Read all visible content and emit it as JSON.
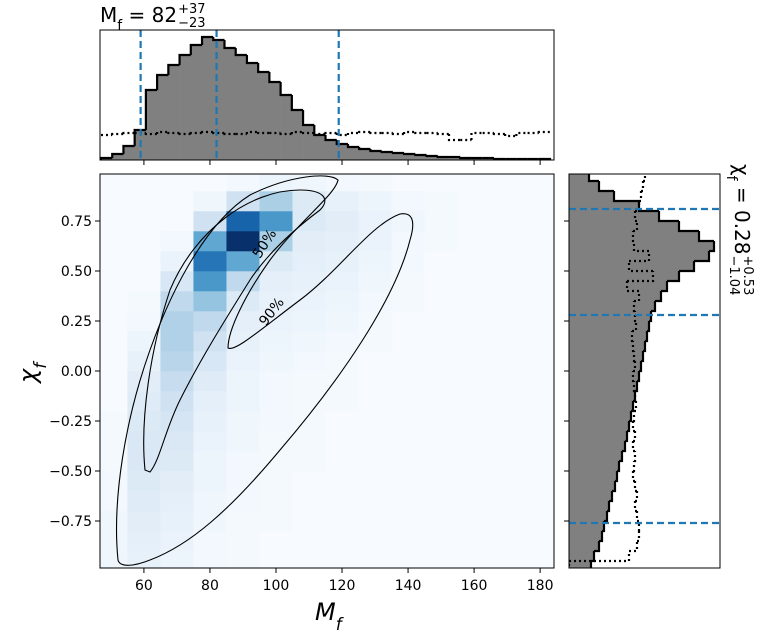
{
  "chart_data": [
    {
      "type": "heatmap",
      "x_label": {
        "symbol": "M",
        "sub": "f"
      },
      "y_label": {
        "symbol": "χ",
        "sub": "f"
      },
      "xlim": [
        46.7,
        184.2
      ],
      "ylim": [
        -0.985,
        0.985
      ],
      "xticks": [
        60,
        80,
        100,
        120,
        140,
        160,
        180
      ],
      "yticks": [
        0.75,
        {
          "value": 0.5,
          "label": "0.50"
        },
        0.25,
        {
          "value": 0,
          "label": "0.00"
        },
        {
          "value": -0.25,
          "label": "−0.25"
        },
        {
          "value": -0.5,
          "label": "−0.50"
        },
        {
          "value": -0.75,
          "label": "−0.75"
        }
      ],
      "x_bins": [
        45,
        55,
        65,
        75,
        85,
        95,
        105,
        115,
        125,
        135,
        145,
        155,
        165,
        175,
        185
      ],
      "y_bins": [
        -1,
        -0.9,
        -0.8,
        -0.7,
        -0.6,
        -0.5,
        -0.4,
        -0.3,
        -0.2,
        -0.1,
        0,
        0.1,
        0.2,
        0.3,
        0.4,
        0.5,
        0.6,
        0.7,
        0.8,
        0.9,
        1
      ],
      "z": [
        [
          3,
          6,
          4,
          2,
          1,
          0,
          0,
          0,
          0,
          0,
          0,
          0,
          0,
          0
        ],
        [
          3,
          7,
          5,
          2,
          1,
          0,
          0,
          0,
          0,
          0,
          0,
          0,
          0,
          0
        ],
        [
          3,
          8,
          6,
          3,
          1,
          1,
          0,
          0,
          0,
          0,
          0,
          0,
          0,
          0
        ],
        [
          2,
          9,
          7,
          3,
          2,
          1,
          0,
          0,
          0,
          0,
          0,
          0,
          0,
          0
        ],
        [
          2,
          10,
          8,
          4,
          2,
          1,
          0,
          0,
          0,
          0,
          0,
          0,
          0,
          0
        ],
        [
          1,
          11,
          10,
          4,
          2,
          1,
          1,
          0,
          0,
          0,
          0,
          0,
          0,
          0
        ],
        [
          1,
          11,
          11,
          5,
          3,
          1,
          1,
          0,
          0,
          0,
          0,
          0,
          0,
          0
        ],
        [
          1,
          10,
          13,
          6,
          3,
          2,
          1,
          0,
          0,
          0,
          0,
          0,
          0,
          0
        ],
        [
          0,
          9,
          15,
          7,
          4,
          2,
          1,
          1,
          0,
          0,
          0,
          0,
          0,
          0
        ],
        [
          0,
          8,
          18,
          9,
          4,
          2,
          1,
          1,
          0,
          0,
          0,
          0,
          0,
          0
        ],
        [
          0,
          6,
          22,
          12,
          5,
          3,
          2,
          1,
          0,
          0,
          0,
          0,
          0,
          0
        ],
        [
          0,
          4,
          24,
          15,
          6,
          4,
          3,
          2,
          1,
          0,
          0,
          0,
          0,
          0
        ],
        [
          0,
          2,
          24,
          20,
          7,
          5,
          4,
          3,
          1,
          0,
          0,
          0,
          0,
          0
        ],
        [
          0,
          1,
          20,
          30,
          10,
          6,
          5,
          4,
          2,
          1,
          0,
          0,
          0,
          0
        ],
        [
          0,
          0,
          12,
          45,
          20,
          7,
          6,
          5,
          3,
          1,
          0,
          0,
          0,
          0
        ],
        [
          0,
          0,
          5,
          55,
          40,
          10,
          7,
          6,
          4,
          2,
          0,
          0,
          0,
          0
        ],
        [
          0,
          0,
          2,
          40,
          75,
          25,
          8,
          7,
          5,
          2,
          1,
          0,
          0,
          0
        ],
        [
          0,
          0,
          0,
          15,
          60,
          45,
          10,
          8,
          5,
          3,
          1,
          0,
          0,
          0
        ],
        [
          0,
          0,
          0,
          3,
          15,
          25,
          10,
          6,
          4,
          2,
          1,
          0,
          0,
          0
        ],
        [
          0,
          0,
          0,
          0,
          2,
          4,
          3,
          2,
          1,
          0,
          0,
          0,
          0,
          0
        ]
      ],
      "contour_labels": [
        "50%",
        "90%"
      ]
    },
    {
      "type": "histogram",
      "orientation": "vertical",
      "title": {
        "symbol": "M",
        "sub": "f",
        "eq": " = 82",
        "plus": "+37",
        "minus": "−23"
      },
      "xlim": [
        46.7,
        184.2
      ],
      "ylim": [
        0,
        130
      ],
      "xticks": [
        60,
        80,
        100,
        120,
        140,
        160,
        180
      ],
      "quantiles": [
        59,
        82,
        119
      ],
      "quantile_color": "#1f77b4",
      "bins": [
        47,
        50.4,
        53.8,
        57.2,
        60.6,
        64,
        67.4,
        70.8,
        74.2,
        77.6,
        81,
        84.4,
        87.8,
        91.2,
        94.6,
        98,
        101.4,
        104.8,
        108.2,
        111.6,
        115,
        118.4,
        121.8,
        125.2,
        128.6,
        132,
        135.4,
        138.8,
        142.2,
        145.6,
        149,
        152.4,
        155.8,
        159.2,
        162.6,
        166,
        169.4,
        172.8,
        176.2,
        179.6,
        183
      ],
      "series": [
        {
          "color": "#808080",
          "filled": true,
          "line_style": "solid",
          "values": [
            2,
            6,
            14,
            30,
            70,
            85,
            95,
            105,
            115,
            123,
            120,
            112,
            105,
            97,
            88,
            78,
            65,
            50,
            35,
            25,
            20,
            16,
            13,
            11,
            9,
            8,
            7,
            6,
            5,
            4,
            3,
            3,
            2,
            2,
            2,
            1,
            1,
            1,
            1,
            1
          ]
        },
        {
          "color": "#000000",
          "filled": false,
          "line_style": "dotted",
          "values": [
            25,
            26,
            27,
            27,
            26,
            28,
            27,
            26,
            27,
            28,
            27,
            26,
            26,
            28,
            27,
            27,
            26,
            28,
            27,
            26,
            27,
            25,
            27,
            28,
            27,
            27,
            26,
            28,
            27,
            27,
            26,
            20,
            20,
            27,
            27,
            26,
            24,
            27,
            27,
            28
          ]
        }
      ]
    },
    {
      "type": "histogram",
      "orientation": "horizontal",
      "title": {
        "symbol": "χ",
        "sub": "f",
        "eq": " = 0.28",
        "plus": "+0.53",
        "minus": "−1.04"
      },
      "xlim": [
        0,
        151
      ],
      "ylim": [
        -0.985,
        0.985
      ],
      "yticks": [
        -0.75,
        -0.5,
        -0.25,
        0,
        0.25,
        0.5,
        0.75
      ],
      "quantiles": [
        -0.76,
        0.28,
        0.81
      ],
      "quantile_color": "#1f77b4",
      "bins": [
        -1,
        -0.95,
        -0.9,
        -0.85,
        -0.8,
        -0.75,
        -0.7,
        -0.65,
        -0.6,
        -0.55,
        -0.5,
        -0.45,
        -0.4,
        -0.35,
        -0.3,
        -0.25,
        -0.2,
        -0.15,
        -0.1,
        -0.05,
        0,
        0.05,
        0.1,
        0.15,
        0.2,
        0.25,
        0.3,
        0.35,
        0.4,
        0.45,
        0.5,
        0.55,
        0.6,
        0.65,
        0.7,
        0.75,
        0.8,
        0.85,
        0.9,
        0.95,
        1
      ],
      "series": [
        {
          "color": "#808080",
          "filled": true,
          "line_style": "solid",
          "values": [
            22,
            25,
            30,
            33,
            35,
            38,
            40,
            43,
            46,
            48,
            50,
            53,
            56,
            58,
            60,
            62,
            64,
            66,
            68,
            70,
            72,
            74,
            76,
            78,
            80,
            82,
            86,
            92,
            98,
            110,
            125,
            140,
            145,
            130,
            110,
            90,
            70,
            45,
            30,
            20
          ]
        },
        {
          "color": "#000000",
          "filled": false,
          "line_style": "dotted",
          "values": [
            0,
            60,
            68,
            70,
            70,
            68,
            66,
            68,
            66,
            64,
            65,
            66,
            64,
            66,
            64,
            65,
            67,
            66,
            65,
            64,
            66,
            65,
            64,
            63,
            67,
            66,
            65,
            70,
            58,
            84,
            60,
            80,
            65,
            64,
            68,
            66,
            70,
            72,
            74,
            76
          ]
        }
      ]
    }
  ]
}
